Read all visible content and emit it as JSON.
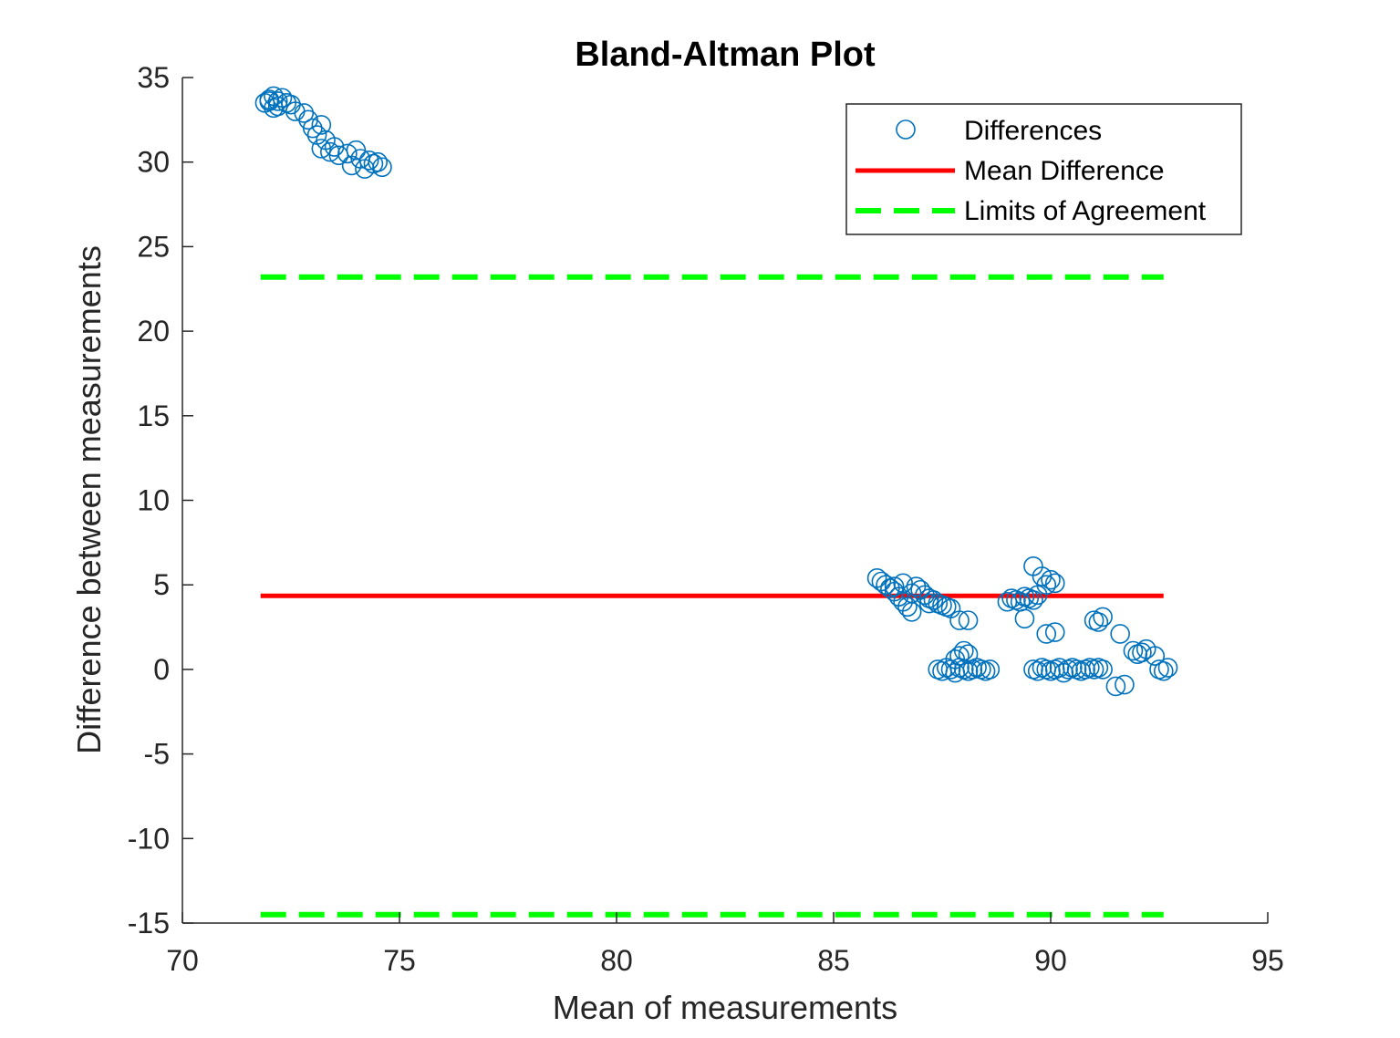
{
  "chart_data": {
    "type": "scatter",
    "title": "Bland-Altman Plot",
    "xlabel": "Mean of measurements",
    "ylabel": "Difference between measurements",
    "xlim": [
      70,
      95
    ],
    "ylim": [
      -15,
      35
    ],
    "xticks": [
      "70",
      "75",
      "80",
      "85",
      "90",
      "95"
    ],
    "yticks": [
      "-15",
      "-10",
      "-5",
      "0",
      "5",
      "10",
      "15",
      "20",
      "25",
      "30",
      "35"
    ],
    "grid": false,
    "legend_position": "top-right",
    "colors": {
      "points": "#0072BD",
      "mean": "#FF0000",
      "limits": "#00FF00"
    },
    "series": [
      {
        "name": "Differences",
        "type": "scatter",
        "points": [
          [
            71.9,
            33.5
          ],
          [
            72.0,
            33.7
          ],
          [
            72.1,
            33.9
          ],
          [
            72.2,
            33.6
          ],
          [
            72.1,
            33.2
          ],
          [
            72.3,
            33.8
          ],
          [
            72.2,
            33.3
          ],
          [
            72.4,
            33.5
          ],
          [
            72.0,
            33.6
          ],
          [
            72.5,
            33.4
          ],
          [
            72.6,
            33.0
          ],
          [
            72.8,
            32.9
          ],
          [
            72.9,
            32.5
          ],
          [
            73.0,
            32.0
          ],
          [
            73.1,
            31.6
          ],
          [
            73.2,
            32.2
          ],
          [
            73.3,
            31.3
          ],
          [
            73.2,
            30.8
          ],
          [
            73.4,
            30.6
          ],
          [
            73.6,
            30.4
          ],
          [
            73.8,
            30.5
          ],
          [
            74.0,
            30.7
          ],
          [
            74.1,
            30.2
          ],
          [
            73.9,
            29.8
          ],
          [
            74.3,
            30.1
          ],
          [
            74.4,
            29.9
          ],
          [
            74.2,
            29.6
          ],
          [
            74.5,
            30.0
          ],
          [
            74.6,
            29.7
          ],
          [
            73.5,
            30.9
          ],
          [
            86.0,
            5.4
          ],
          [
            86.1,
            5.2
          ],
          [
            86.2,
            5.0
          ],
          [
            86.3,
            4.8
          ],
          [
            86.4,
            4.6
          ],
          [
            86.5,
            4.3
          ],
          [
            86.6,
            4.0
          ],
          [
            86.7,
            3.7
          ],
          [
            86.8,
            3.4
          ],
          [
            86.6,
            5.1
          ],
          [
            86.9,
            4.9
          ],
          [
            87.0,
            4.7
          ],
          [
            87.1,
            4.4
          ],
          [
            87.2,
            4.2
          ],
          [
            87.3,
            4.1
          ],
          [
            87.4,
            3.9
          ],
          [
            87.5,
            3.8
          ],
          [
            87.6,
            3.7
          ],
          [
            87.7,
            3.6
          ],
          [
            87.9,
            2.9
          ],
          [
            88.1,
            2.9
          ],
          [
            86.4,
            4.9
          ],
          [
            86.8,
            4.5
          ],
          [
            87.2,
            3.9
          ],
          [
            87.4,
            0.0
          ],
          [
            87.5,
            -0.1
          ],
          [
            87.6,
            0.1
          ],
          [
            87.7,
            0.0
          ],
          [
            87.8,
            -0.2
          ],
          [
            87.9,
            0.1
          ],
          [
            88.0,
            0.0
          ],
          [
            88.1,
            -0.1
          ],
          [
            88.2,
            0.0
          ],
          [
            88.3,
            0.1
          ],
          [
            88.4,
            0.0
          ],
          [
            88.5,
            -0.1
          ],
          [
            88.6,
            0.0
          ],
          [
            87.9,
            0.8
          ],
          [
            88.0,
            1.1
          ],
          [
            88.1,
            0.9
          ],
          [
            87.8,
            0.6
          ],
          [
            89.0,
            4.0
          ],
          [
            89.1,
            4.2
          ],
          [
            89.2,
            4.1
          ],
          [
            89.3,
            4.0
          ],
          [
            89.4,
            4.3
          ],
          [
            89.5,
            4.2
          ],
          [
            89.6,
            4.1
          ],
          [
            89.7,
            4.4
          ],
          [
            89.4,
            3.0
          ],
          [
            89.6,
            6.1
          ],
          [
            89.8,
            5.5
          ],
          [
            89.9,
            5.0
          ],
          [
            90.0,
            5.3
          ],
          [
            90.1,
            5.1
          ],
          [
            89.9,
            2.1
          ],
          [
            90.1,
            2.2
          ],
          [
            89.6,
            0.0
          ],
          [
            89.7,
            -0.1
          ],
          [
            89.8,
            0.1
          ],
          [
            89.9,
            0.0
          ],
          [
            90.0,
            -0.1
          ],
          [
            90.1,
            0.0
          ],
          [
            90.2,
            0.1
          ],
          [
            90.3,
            -0.2
          ],
          [
            90.4,
            0.0
          ],
          [
            90.5,
            0.1
          ],
          [
            90.6,
            0.0
          ],
          [
            90.7,
            -0.1
          ],
          [
            90.8,
            0.0
          ],
          [
            90.9,
            0.1
          ],
          [
            91.0,
            0.0
          ],
          [
            91.1,
            0.1
          ],
          [
            91.2,
            0.0
          ],
          [
            91.0,
            2.9
          ],
          [
            91.2,
            3.1
          ],
          [
            91.1,
            2.8
          ],
          [
            91.5,
            -1.0
          ],
          [
            91.7,
            -0.9
          ],
          [
            91.6,
            2.1
          ],
          [
            91.9,
            1.1
          ],
          [
            92.0,
            0.9
          ],
          [
            92.1,
            1.0
          ],
          [
            92.2,
            1.2
          ],
          [
            92.4,
            0.8
          ],
          [
            92.5,
            0.0
          ],
          [
            92.6,
            -0.1
          ],
          [
            92.7,
            0.1
          ]
        ]
      },
      {
        "name": "Mean Difference",
        "type": "line",
        "x": [
          71.8,
          92.6
        ],
        "y": [
          4.35,
          4.35
        ]
      },
      {
        "name": "Limits of Agreement",
        "type": "dashed-line",
        "upper": {
          "x": [
            71.8,
            92.6
          ],
          "y": [
            23.2,
            23.2
          ]
        },
        "lower": {
          "x": [
            71.8,
            92.6
          ],
          "y": [
            -14.5,
            -14.5
          ]
        }
      }
    ]
  }
}
